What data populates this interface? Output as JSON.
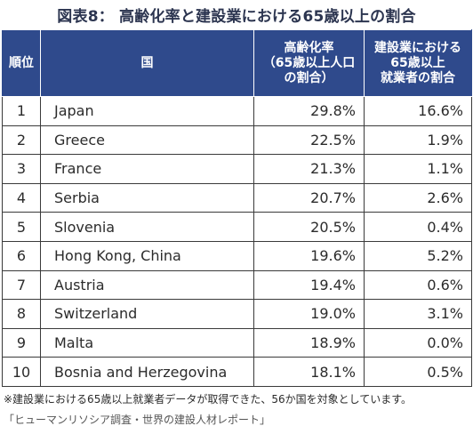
{
  "chart_data": {
    "type": "table",
    "title": "図表8： 高齢化率と建設業における65歳以上の割合",
    "columns": {
      "rank": "順位",
      "country": "国",
      "aging_rate": "高齢化率\n（65歳以上人口\nの割合）",
      "construction_share": "建設業における\n65歳以上\n就業者の割合"
    },
    "rows": [
      {
        "rank": "1",
        "country": "Japan",
        "aging_rate": "29.8%",
        "construction_share": "16.6%"
      },
      {
        "rank": "2",
        "country": "Greece",
        "aging_rate": "22.5%",
        "construction_share": "1.9%"
      },
      {
        "rank": "3",
        "country": "France",
        "aging_rate": "21.3%",
        "construction_share": "1.1%"
      },
      {
        "rank": "4",
        "country": "Serbia",
        "aging_rate": "20.7%",
        "construction_share": "2.6%"
      },
      {
        "rank": "5",
        "country": "Slovenia",
        "aging_rate": "20.5%",
        "construction_share": "0.4%"
      },
      {
        "rank": "6",
        "country": "Hong Kong, China",
        "aging_rate": "19.6%",
        "construction_share": "5.2%"
      },
      {
        "rank": "7",
        "country": "Austria",
        "aging_rate": "19.4%",
        "construction_share": "0.6%"
      },
      {
        "rank": "8",
        "country": "Switzerland",
        "aging_rate": "19.0%",
        "construction_share": "3.1%"
      },
      {
        "rank": "9",
        "country": "Malta",
        "aging_rate": "18.9%",
        "construction_share": "0.0%"
      },
      {
        "rank": "10",
        "country": "Bosnia and Herzegovina",
        "aging_rate": "18.1%",
        "construction_share": "0.5%"
      }
    ],
    "footnote": "※建設業における65歳以上就業者データが取得できた、56か国を対象としています。",
    "source": "「ヒューマンリソシア調査・世界の建設人材レポート」"
  },
  "colors": {
    "header_bg": "#2f4a8c",
    "header_text": "#ffffff",
    "title_text": "#2c3550",
    "border": "#3a3a3a"
  }
}
